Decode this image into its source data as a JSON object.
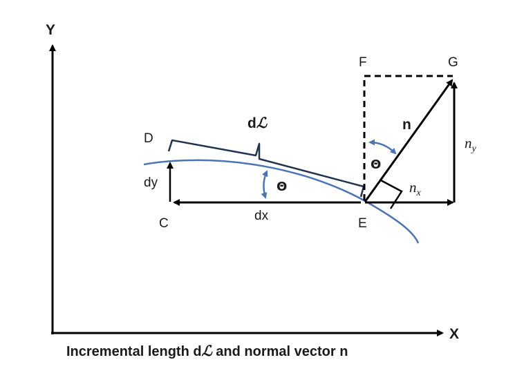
{
  "axes": {
    "y_label": "Y",
    "x_label": "X"
  },
  "points": {
    "C": "C",
    "D": "D",
    "E": "E",
    "F": "F",
    "G": "G"
  },
  "labels": {
    "dl_prefix": "d",
    "dl_script": "ℒ",
    "dx": "dx",
    "dy": "dy",
    "theta_curve": "Θ",
    "theta_normal": "Θ",
    "n": "n",
    "n_x_base": "n",
    "n_x_sub": "x",
    "n_y_base": "n",
    "n_y_sub": "y"
  },
  "caption": {
    "before": "Incremental length d",
    "script": "ℒ",
    "after": " and normal vector n"
  },
  "colors": {
    "curve": "#4a74b4",
    "ink": "#000000",
    "brace": "#1f3350"
  }
}
